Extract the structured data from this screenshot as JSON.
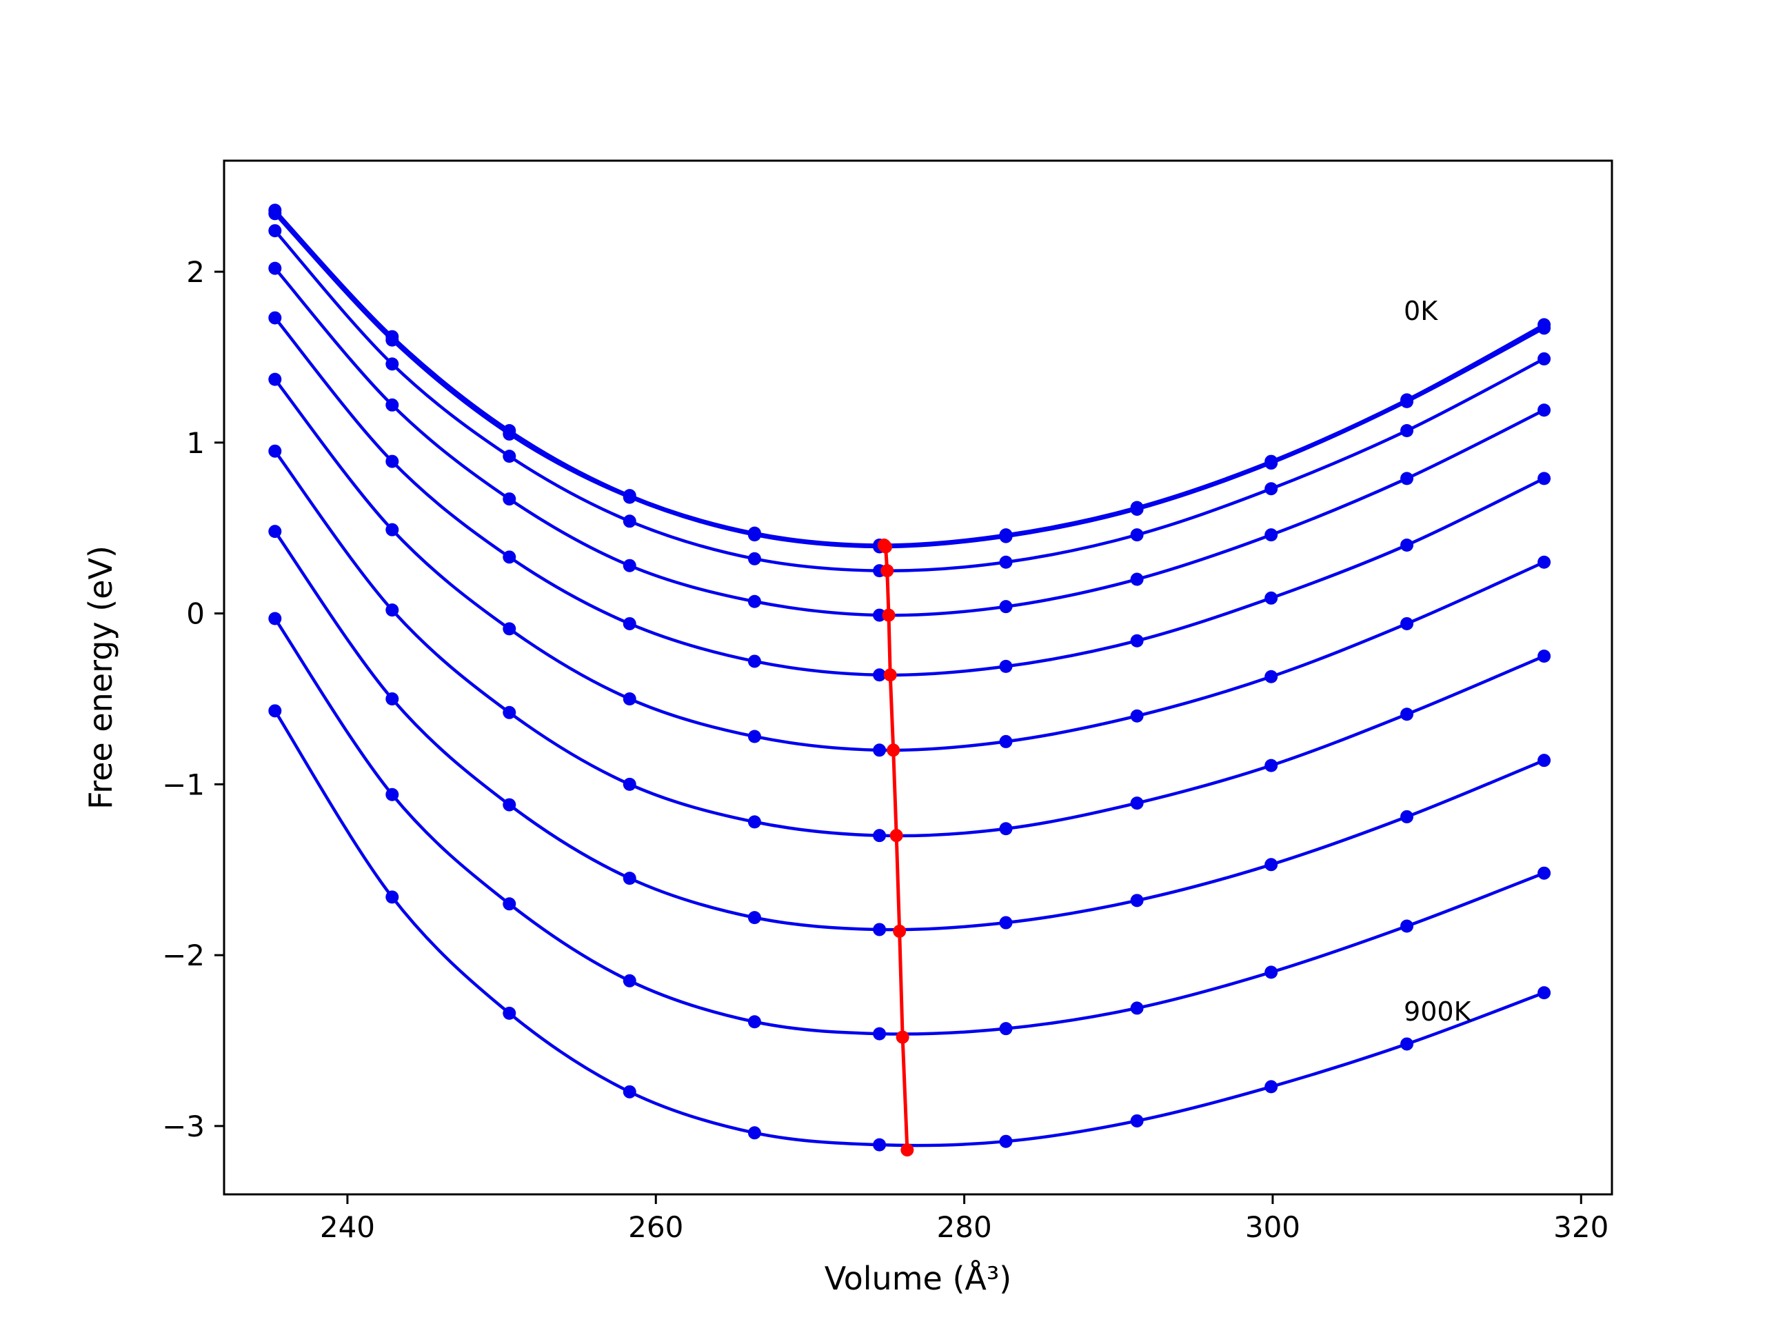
{
  "chart_data": {
    "type": "line",
    "title": "",
    "xlabel": "Volume (Å³)",
    "ylabel": "Free energy (eV)",
    "xlim": [
      232,
      322
    ],
    "ylim": [
      -3.4,
      2.65
    ],
    "xticks": [
      240,
      260,
      280,
      300,
      320
    ],
    "yticks": [
      2,
      1,
      0,
      -1,
      -2,
      -3
    ],
    "ytick_labels": [
      "2",
      "1",
      "0",
      "−1",
      "−2",
      "−3"
    ],
    "grid": false,
    "x": [
      235.3,
      242.9,
      250.5,
      258.3,
      266.4,
      274.5,
      282.7,
      291.2,
      299.9,
      308.7,
      317.6
    ],
    "series": [
      {
        "values": [
          2.36,
          1.62,
          1.07,
          0.69,
          0.47,
          0.4,
          0.46,
          0.62,
          0.89,
          1.25,
          1.69
        ]
      },
      {
        "values": [
          2.34,
          1.6,
          1.05,
          0.68,
          0.46,
          0.39,
          0.45,
          0.61,
          0.88,
          1.24,
          1.67
        ]
      },
      {
        "values": [
          2.24,
          1.46,
          0.92,
          0.54,
          0.32,
          0.25,
          0.3,
          0.46,
          0.73,
          1.07,
          1.49
        ]
      },
      {
        "values": [
          2.02,
          1.22,
          0.67,
          0.28,
          0.07,
          -0.01,
          0.04,
          0.2,
          0.46,
          0.79,
          1.19
        ]
      },
      {
        "values": [
          1.73,
          0.89,
          0.33,
          -0.06,
          -0.28,
          -0.36,
          -0.31,
          -0.16,
          0.09,
          0.4,
          0.79
        ]
      },
      {
        "values": [
          1.37,
          0.49,
          -0.09,
          -0.5,
          -0.72,
          -0.8,
          -0.75,
          -0.6,
          -0.37,
          -0.06,
          0.3
        ]
      },
      {
        "values": [
          0.95,
          0.02,
          -0.58,
          -1.0,
          -1.22,
          -1.3,
          -1.26,
          -1.11,
          -0.89,
          -0.59,
          -0.25
        ]
      },
      {
        "values": [
          0.48,
          -0.5,
          -1.12,
          -1.55,
          -1.78,
          -1.85,
          -1.81,
          -1.68,
          -1.47,
          -1.19,
          -0.86
        ]
      },
      {
        "values": [
          -0.03,
          -1.06,
          -1.7,
          -2.15,
          -2.39,
          -2.46,
          -2.43,
          -2.31,
          -2.1,
          -1.83,
          -1.52
        ]
      },
      {
        "values": [
          -0.57,
          -1.66,
          -2.34,
          -2.8,
          -3.04,
          -3.11,
          -3.09,
          -2.97,
          -2.77,
          -2.52,
          -2.22
        ]
      }
    ],
    "minima_line": {
      "x": [
        274.8,
        274.9,
        275.0,
        275.1,
        275.2,
        275.4,
        275.6,
        275.8,
        276.0,
        276.3
      ],
      "y": [
        0.4,
        0.39,
        0.25,
        -0.01,
        -0.36,
        -0.8,
        -1.3,
        -1.86,
        -2.48,
        -3.14
      ]
    },
    "annotations": [
      {
        "text": "0K",
        "x": 308.5,
        "y": 1.77
      },
      {
        "text": "900K",
        "x": 308.5,
        "y": -2.33
      }
    ],
    "colors": {
      "series": "#0000ee",
      "minima": "#ff0000",
      "axes": "#000000"
    }
  }
}
